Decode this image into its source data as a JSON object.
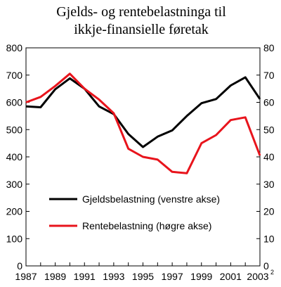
{
  "chart_data": {
    "type": "line",
    "title_lines": [
      "Gjelds- og rentebelastninga til",
      "ikkje-finansielle føretak"
    ],
    "x": [
      1987,
      1988,
      1989,
      1990,
      1991,
      1992,
      1993,
      1994,
      1995,
      1996,
      1997,
      1998,
      1999,
      2000,
      2001,
      2002,
      2003
    ],
    "x_tick_labels": [
      "1987",
      "1989",
      "1991",
      "1993",
      "1995",
      "1997",
      "1999",
      "2001",
      "2003"
    ],
    "x_last_superscript": "2",
    "y_left": {
      "lim": [
        0,
        800
      ],
      "ticks": [
        "0",
        "100",
        "200",
        "300",
        "400",
        "500",
        "600",
        "700",
        "800"
      ]
    },
    "y_right": {
      "lim": [
        0,
        80
      ],
      "ticks": [
        "0",
        "10",
        "20",
        "30",
        "40",
        "50",
        "60",
        "70",
        "80"
      ]
    },
    "grid": false,
    "legend_position": "center",
    "series": [
      {
        "name": "Gjeldsbelastning (venstre akse)",
        "axis": "left",
        "color": "#000000",
        "values": [
          585,
          582,
          648,
          688,
          650,
          585,
          557,
          484,
          436,
          474,
          497,
          550,
          597,
          612,
          662,
          692,
          612
        ]
      },
      {
        "name": "Rentebelastning (høgre akse)",
        "axis": "right",
        "color": "#e8141c",
        "values": [
          60,
          62,
          66,
          70.5,
          65,
          61,
          56,
          43,
          40,
          39,
          34.5,
          34,
          45,
          48,
          53.5,
          54.5,
          40.5
        ]
      }
    ]
  }
}
